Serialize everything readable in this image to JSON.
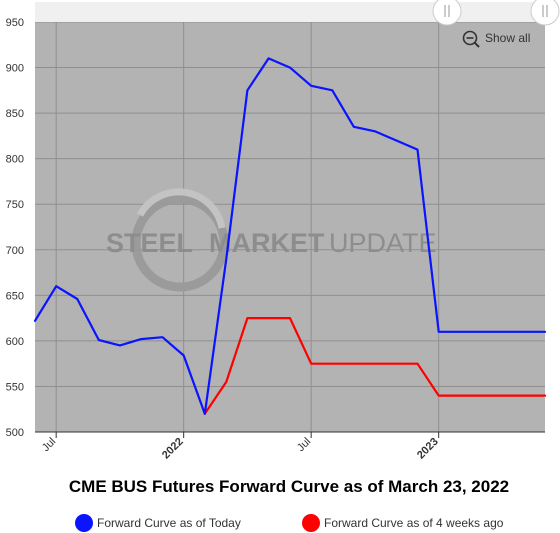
{
  "chart_data": {
    "type": "line",
    "title": "CME BUS Futures Forward Curve as of March 23, 2022",
    "watermark": {
      "part1": "STEEL",
      "part2": "MARKET",
      "part3": "UPDATE"
    },
    "xlabel": "",
    "ylabel": "",
    "x_ticks": [
      {
        "x": 2021.5,
        "label": "Jul",
        "bold": false
      },
      {
        "x": 2022.0,
        "label": "2022",
        "bold": true
      },
      {
        "x": 2022.5,
        "label": "Jul",
        "bold": false
      },
      {
        "x": 2023.0,
        "label": "2023",
        "bold": true
      }
    ],
    "xlim": [
      2021.417,
      2023.417
    ],
    "ylim": [
      500,
      950
    ],
    "yticks": [
      500,
      550,
      600,
      650,
      700,
      750,
      800,
      850,
      900,
      950
    ],
    "grid": true,
    "plot_background": "#b3b3b3",
    "legend_position": "bottom",
    "series": [
      {
        "name": "Forward Curve as of Today",
        "color": "#0a14ff",
        "x": [
          2021.417,
          2021.5,
          2021.583,
          2021.667,
          2021.75,
          2021.833,
          2021.917,
          2022.0,
          2022.083,
          2022.167,
          2022.25,
          2022.333,
          2022.417,
          2022.5,
          2022.583,
          2022.667,
          2022.75,
          2022.833,
          2022.917,
          2023.0,
          2023.083,
          2023.167,
          2023.25,
          2023.333,
          2023.417
        ],
        "y": [
          622,
          660,
          646,
          601,
          595,
          602,
          604,
          584,
          520,
          690,
          875,
          910,
          900,
          880,
          875,
          835,
          830,
          820,
          810,
          610,
          610,
          610,
          610,
          610,
          610
        ]
      },
      {
        "name": "Forward Curve as of 4 weeks ago",
        "color": "#ff0000",
        "x": [
          2022.083,
          2022.167,
          2022.25,
          2022.333,
          2022.417,
          2022.5,
          2022.583,
          2022.667,
          2022.75,
          2022.833,
          2022.917,
          2023.0,
          2023.083,
          2023.167,
          2023.25,
          2023.333,
          2023.417
        ],
        "y": [
          520,
          555,
          625,
          625,
          625,
          575,
          575,
          575,
          575,
          575,
          575,
          540,
          540,
          540,
          540,
          540,
          540
        ]
      }
    ]
  },
  "controls": {
    "show_all_label": "Show all",
    "zoom_icon": "zoom-out-icon",
    "handle_icon": "drag-handle-icon"
  },
  "legend": {
    "items": [
      {
        "label": "Forward Curve as of Today",
        "color": "#0a14ff"
      },
      {
        "label": "Forward Curve as of 4 weeks ago",
        "color": "#ff0000"
      }
    ]
  }
}
